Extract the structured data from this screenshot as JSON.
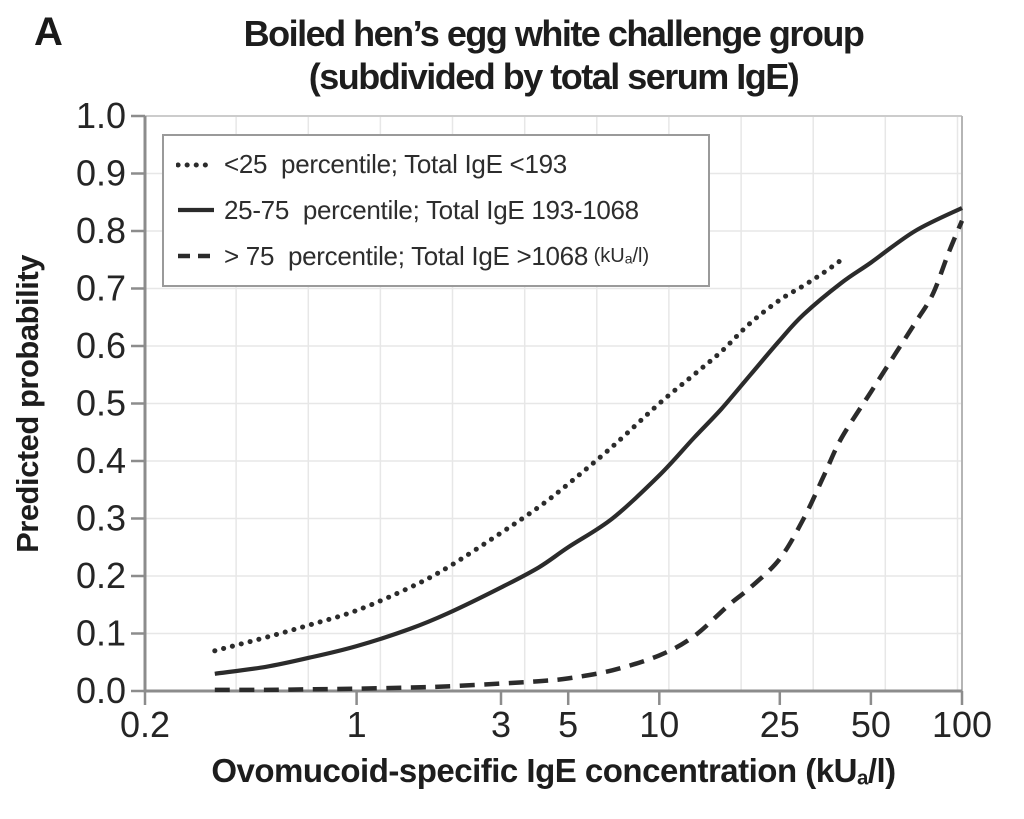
{
  "panel_label": "A",
  "title": {
    "line1": "Boiled hen’s egg white challenge group",
    "line2": "(subdivided by total serum IgE)"
  },
  "axes": {
    "ylabel": "Predicted probability",
    "xlabel": {
      "pre": "Ovomucoid-specific IgE concentration (kU",
      "sub": "a",
      "post": "/l)"
    },
    "x_ticks": [
      0.2,
      1,
      3,
      5,
      10,
      25,
      50,
      100
    ],
    "y_ticks": [
      "0.0",
      "0.1",
      "0.2",
      "0.3",
      "0.4",
      "0.5",
      "0.6",
      "0.7",
      "0.8",
      "0.9",
      "1.0"
    ]
  },
  "legend": {
    "items": [
      {
        "style": "dotted",
        "label": "<25  percentile; Total IgE <193"
      },
      {
        "style": "solid",
        "label": "25-75  percentile; Total IgE 193-1068"
      },
      {
        "style": "dashed",
        "label": "> 75  percentile; Total IgE >1068",
        "unit": {
          "pre": " (kU",
          "sub": "a",
          "post": "/l)"
        }
      }
    ]
  },
  "colors": {
    "curve": "#2b2b2b",
    "axis": "#8c8c8c",
    "border_top": "#cccccc",
    "border_right": "#b5b5b5",
    "grid": "#e7e7e7",
    "tick_label": "#252525"
  },
  "chart_data": {
    "type": "line",
    "x_scale": "log",
    "xlim": [
      0.2,
      100
    ],
    "ylim": [
      0.0,
      1.0
    ],
    "title": "Boiled hen's egg white challenge group (subdivided by total serum IgE)",
    "xlabel": "Ovomucoid-specific IgE concentration (kUa/l)",
    "ylabel": "Predicted probability",
    "x_tick_values": [
      0.2,
      1,
      3,
      5,
      10,
      25,
      50,
      100
    ],
    "y_tick_step": 0.1,
    "grid": true,
    "legend_position": "top-left",
    "series": [
      {
        "name": "<25 percentile; Total IgE <193",
        "style": "dotted",
        "points": [
          [
            0.34,
            0.07
          ],
          [
            0.5,
            0.093
          ],
          [
            0.7,
            0.115
          ],
          [
            1,
            0.14
          ],
          [
            1.5,
            0.18
          ],
          [
            2,
            0.215
          ],
          [
            3,
            0.275
          ],
          [
            4,
            0.32
          ],
          [
            5,
            0.36
          ],
          [
            7,
            0.425
          ],
          [
            10,
            0.5
          ],
          [
            13,
            0.55
          ],
          [
            16,
            0.59
          ],
          [
            20,
            0.64
          ],
          [
            25,
            0.68
          ],
          [
            30,
            0.705
          ],
          [
            35,
            0.728
          ],
          [
            40,
            0.75
          ]
        ]
      },
      {
        "name": "25-75 percentile; Total IgE 193-1068",
        "style": "solid",
        "points": [
          [
            0.34,
            0.03
          ],
          [
            0.5,
            0.042
          ],
          [
            0.7,
            0.058
          ],
          [
            1,
            0.078
          ],
          [
            1.5,
            0.108
          ],
          [
            2,
            0.135
          ],
          [
            3,
            0.18
          ],
          [
            4,
            0.215
          ],
          [
            5,
            0.25
          ],
          [
            7,
            0.3
          ],
          [
            10,
            0.375
          ],
          [
            13,
            0.44
          ],
          [
            16,
            0.49
          ],
          [
            20,
            0.55
          ],
          [
            25,
            0.61
          ],
          [
            30,
            0.655
          ],
          [
            40,
            0.71
          ],
          [
            50,
            0.745
          ],
          [
            70,
            0.8
          ],
          [
            100,
            0.84
          ]
        ]
      },
      {
        "name": ">75 percentile; Total IgE >1068 (kUa/l)",
        "style": "dashed",
        "points": [
          [
            0.34,
            0.002
          ],
          [
            0.5,
            0.002
          ],
          [
            0.7,
            0.003
          ],
          [
            1,
            0.004
          ],
          [
            1.5,
            0.006
          ],
          [
            2,
            0.008
          ],
          [
            3,
            0.013
          ],
          [
            4,
            0.017
          ],
          [
            5,
            0.022
          ],
          [
            7,
            0.036
          ],
          [
            10,
            0.062
          ],
          [
            13,
            0.095
          ],
          [
            17,
            0.15
          ],
          [
            20,
            0.18
          ],
          [
            25,
            0.23
          ],
          [
            30,
            0.3
          ],
          [
            35,
            0.375
          ],
          [
            40,
            0.44
          ],
          [
            50,
            0.52
          ],
          [
            60,
            0.585
          ],
          [
            70,
            0.64
          ],
          [
            80,
            0.69
          ],
          [
            90,
            0.76
          ],
          [
            100,
            0.818
          ]
        ]
      }
    ]
  }
}
